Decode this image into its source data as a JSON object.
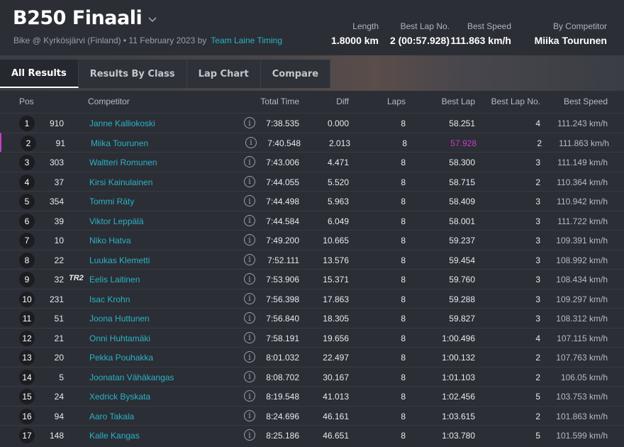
{
  "header": {
    "title": "B250 Finaali",
    "subtitle": "Bike @ Kyrkösjärvi (Finland) • 11 February 2023 by",
    "organizer": "Team Laine Timing",
    "stats": {
      "length_label": "Length",
      "length_value": "1.8000 km",
      "best_lap_no_label": "Best Lap No.",
      "best_lap_no_value": "2 (00:57.928)",
      "best_speed_label": "Best Speed",
      "best_speed_value": "111.863 km/h",
      "by_competitor_label": "By Competitor",
      "by_competitor_value": "Miika Tourunen"
    }
  },
  "tabs": [
    "All Results",
    "Results By Class",
    "Lap Chart",
    "Compare"
  ],
  "table": {
    "headers": {
      "pos": "Pos",
      "competitor": "Competitor",
      "total_time": "Total Time",
      "diff": "Diff",
      "laps": "Laps",
      "best_lap": "Best Lap",
      "best_lap_no": "Best Lap No.",
      "best_speed": "Best Speed"
    },
    "rows": [
      {
        "pos": "1",
        "num": "910",
        "name": "Janne Kalliokoski",
        "total": "7:38.535",
        "diff": "0.000",
        "laps": "8",
        "best_lap": "58.251",
        "best_lap_no": "4",
        "best_speed": "111.243 km/h"
      },
      {
        "pos": "2",
        "num": "91",
        "name": "Miika Tourunen",
        "total": "7:40.548",
        "diff": "2.013",
        "laps": "8",
        "best_lap": "57.928",
        "best_lap_no": "2",
        "best_speed": "111.863 km/h"
      },
      {
        "pos": "3",
        "num": "303",
        "name": "Waltteri Romunen",
        "total": "7:43.006",
        "diff": "4.471",
        "laps": "8",
        "best_lap": "58.300",
        "best_lap_no": "3",
        "best_speed": "111.149 km/h"
      },
      {
        "pos": "4",
        "num": "37",
        "name": "Kirsi Kainulainen",
        "total": "7:44.055",
        "diff": "5.520",
        "laps": "8",
        "best_lap": "58.715",
        "best_lap_no": "2",
        "best_speed": "110.364 km/h"
      },
      {
        "pos": "5",
        "num": "354",
        "name": "Tommi Räty",
        "total": "7:44.498",
        "diff": "5.963",
        "laps": "8",
        "best_lap": "58.409",
        "best_lap_no": "3",
        "best_speed": "110.942 km/h"
      },
      {
        "pos": "6",
        "num": "39",
        "name": "Viktor Leppälä",
        "total": "7:44.584",
        "diff": "6.049",
        "laps": "8",
        "best_lap": "58.001",
        "best_lap_no": "3",
        "best_speed": "111.722 km/h"
      },
      {
        "pos": "7",
        "num": "10",
        "name": "Niko Hatva",
        "total": "7:49.200",
        "diff": "10.665",
        "laps": "8",
        "best_lap": "59.237",
        "best_lap_no": "3",
        "best_speed": "109.391 km/h"
      },
      {
        "pos": "8",
        "num": "22",
        "name": "Luukas Klemetti",
        "total": "7:52.111",
        "diff": "13.576",
        "laps": "8",
        "best_lap": "59.454",
        "best_lap_no": "3",
        "best_speed": "108.992 km/h"
      },
      {
        "pos": "9",
        "num": "32",
        "tag": "TR2",
        "name": "Eelis Laitinen",
        "total": "7:53.906",
        "diff": "15.371",
        "laps": "8",
        "best_lap": "59.760",
        "best_lap_no": "3",
        "best_speed": "108.434 km/h"
      },
      {
        "pos": "10",
        "num": "231",
        "name": "Isac Krohn",
        "total": "7:56.398",
        "diff": "17.863",
        "laps": "8",
        "best_lap": "59.288",
        "best_lap_no": "3",
        "best_speed": "109.297 km/h"
      },
      {
        "pos": "11",
        "num": "51",
        "name": "Joona Huttunen",
        "total": "7:56.840",
        "diff": "18.305",
        "laps": "8",
        "best_lap": "59.827",
        "best_lap_no": "3",
        "best_speed": "108.312 km/h"
      },
      {
        "pos": "12",
        "num": "21",
        "name": "Onni Huhtamäki",
        "total": "7:58.191",
        "diff": "19.656",
        "laps": "8",
        "best_lap": "1:00.496",
        "best_lap_no": "4",
        "best_speed": "107.115 km/h"
      },
      {
        "pos": "13",
        "num": "20",
        "name": "Pekka Pouhakka",
        "total": "8:01.032",
        "diff": "22.497",
        "laps": "8",
        "best_lap": "1:00.132",
        "best_lap_no": "2",
        "best_speed": "107.763 km/h"
      },
      {
        "pos": "14",
        "num": "5",
        "name": "Joonatan Vähäkangas",
        "total": "8:08.702",
        "diff": "30.167",
        "laps": "8",
        "best_lap": "1:01.103",
        "best_lap_no": "2",
        "best_speed": "106.05 km/h"
      },
      {
        "pos": "15",
        "num": "24",
        "name": "Xedrick Byskata",
        "total": "8:19.548",
        "diff": "41.013",
        "laps": "8",
        "best_lap": "1:02.456",
        "best_lap_no": "5",
        "best_speed": "103.753 km/h"
      },
      {
        "pos": "16",
        "num": "94",
        "name": "Aaro Takala",
        "total": "8:24.696",
        "diff": "46.161",
        "laps": "8",
        "best_lap": "1:03.615",
        "best_lap_no": "2",
        "best_speed": "101.863 km/h"
      },
      {
        "pos": "17",
        "num": "148",
        "name": "Kalle Kangas",
        "total": "8:25.186",
        "diff": "46.651",
        "laps": "8",
        "best_lap": "1:03.780",
        "best_lap_no": "5",
        "best_speed": "101.599 km/h"
      }
    ],
    "highlight_row_index": 1
  },
  "colors": {
    "accent": "#2ab3c6",
    "personal_best": "#c83cc8",
    "background": "#2b2e35"
  },
  "icons": [
    "chevron-down-icon",
    "info-icon"
  ]
}
